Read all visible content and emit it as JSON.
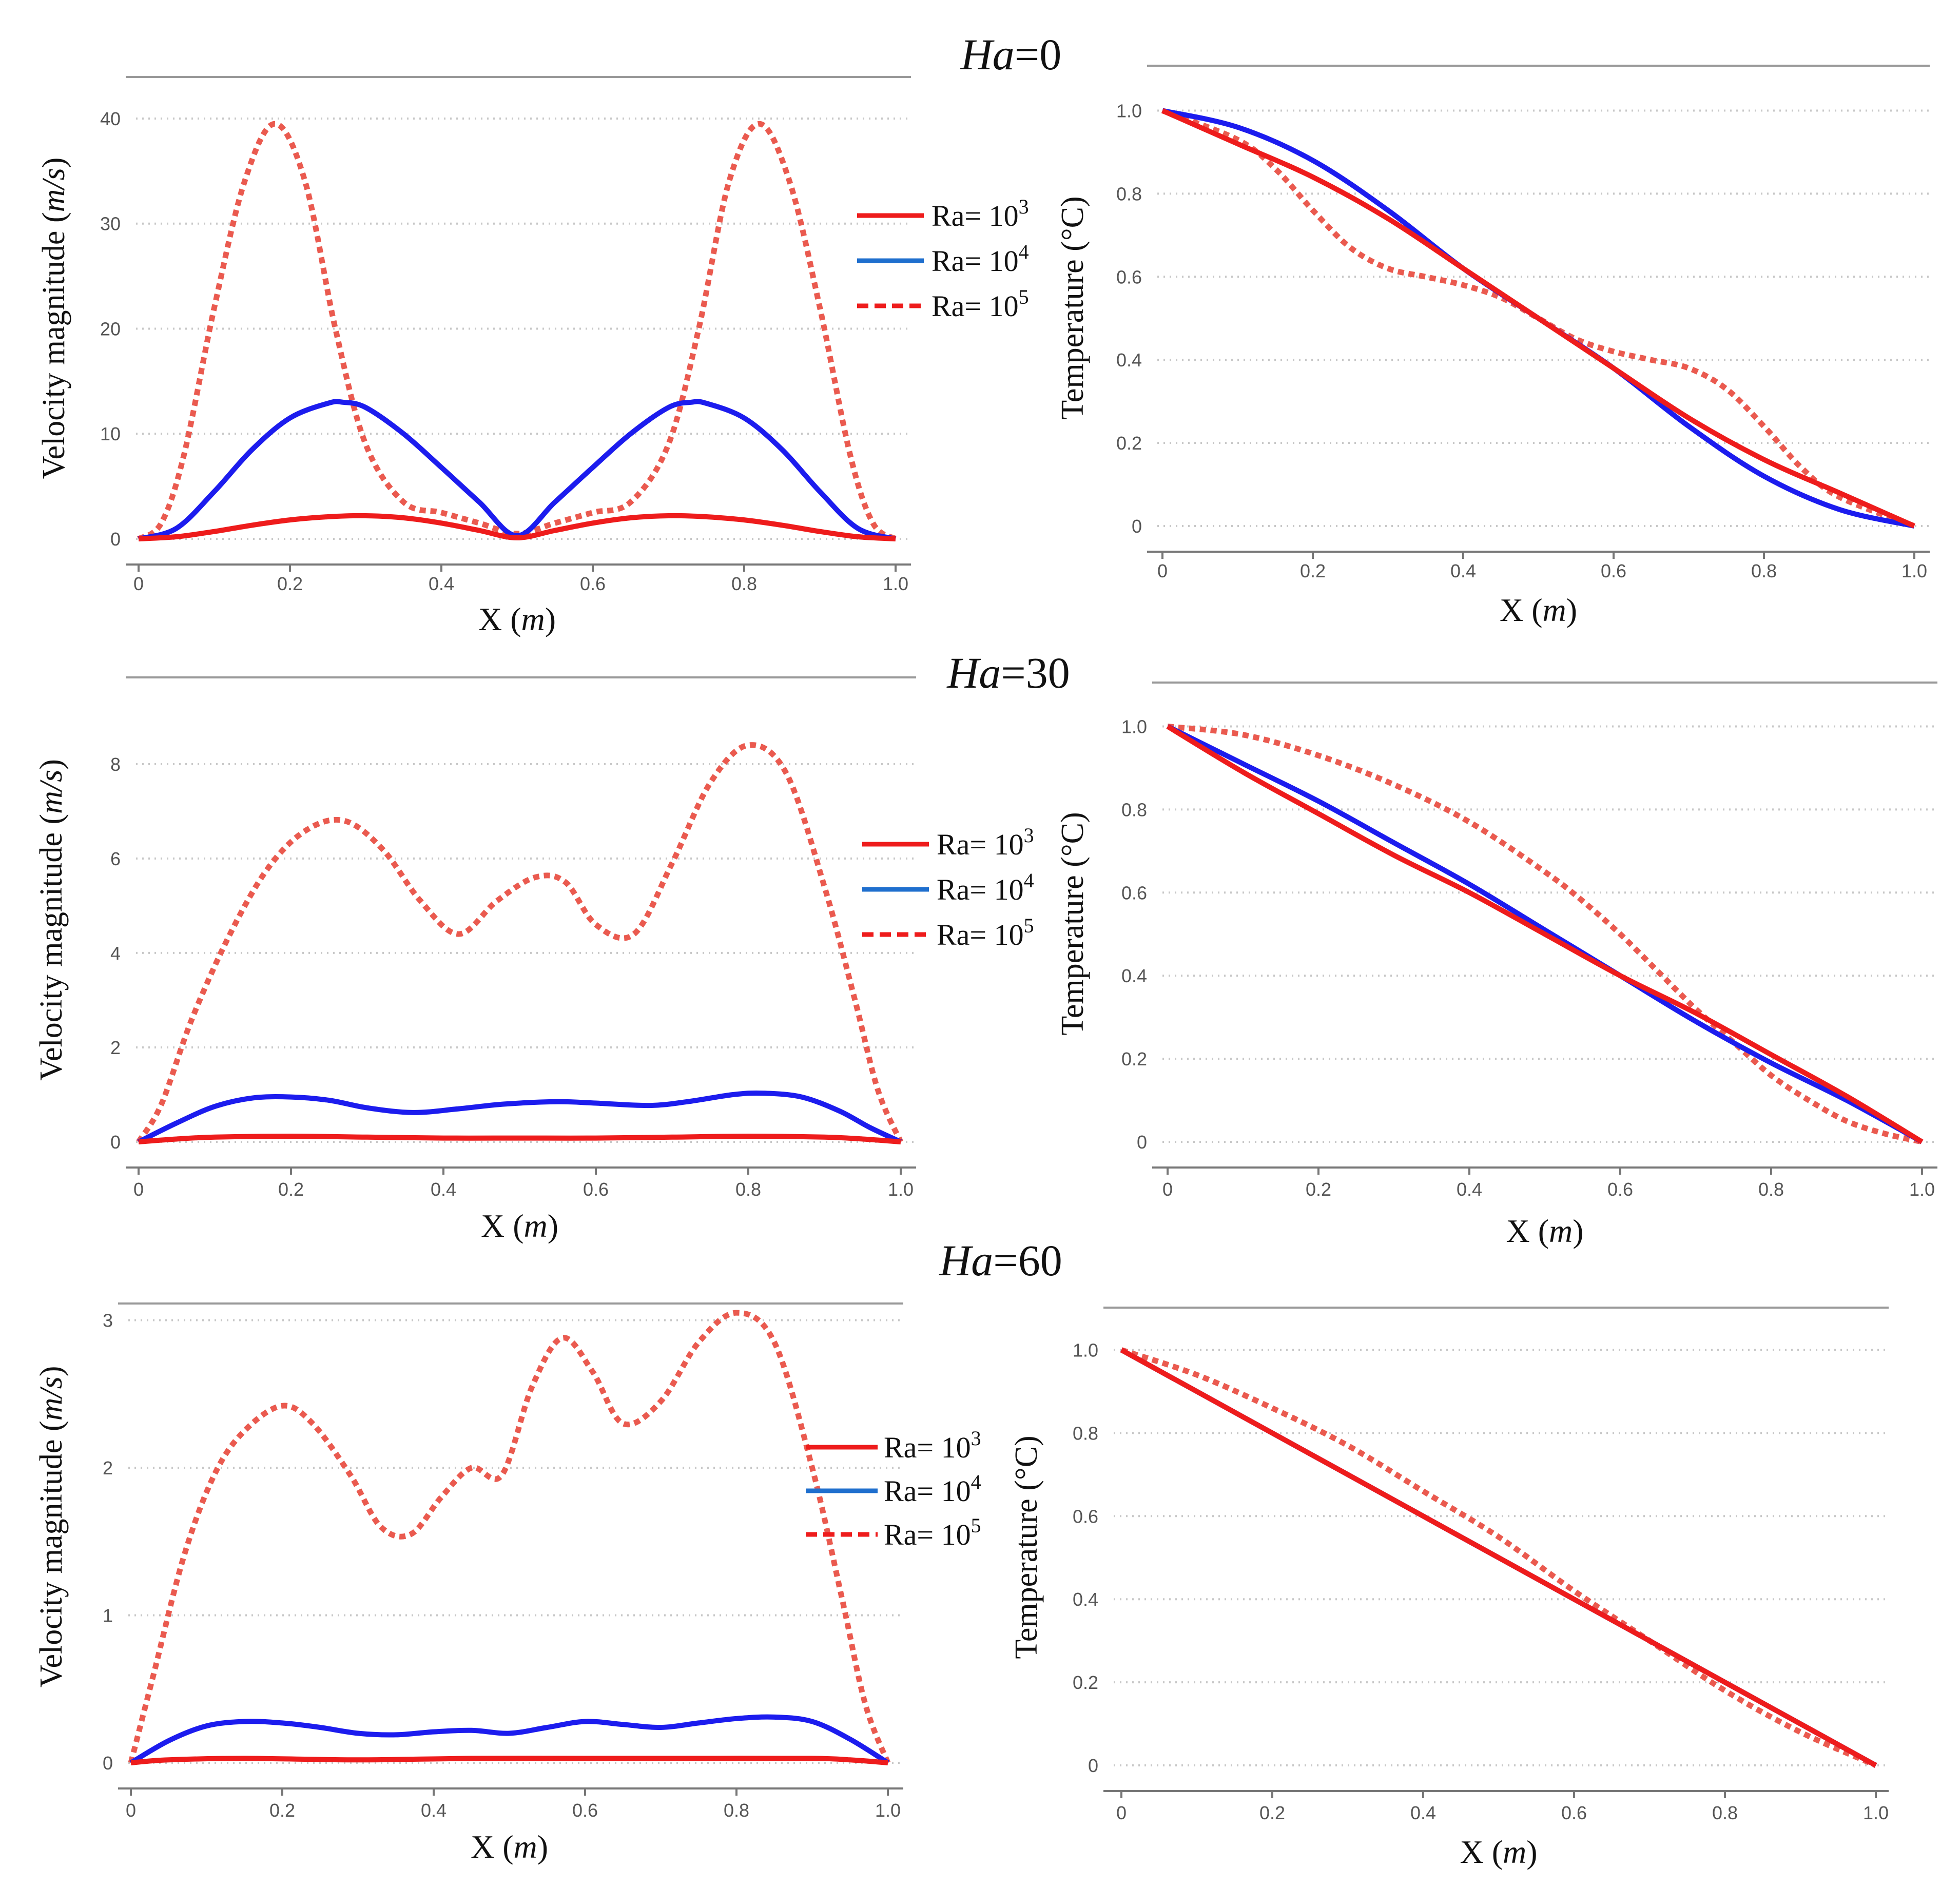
{
  "figure_labels": [
    {
      "id": "ha0",
      "prefix": "Ha",
      "suffix": "=0"
    },
    {
      "id": "ha30",
      "prefix": "Ha",
      "suffix": "=30"
    },
    {
      "id": "ha60",
      "prefix": "Ha",
      "suffix": "=60"
    }
  ],
  "legend": {
    "entries": [
      {
        "label": "Ra= 10",
        "exp": "3",
        "color": "#ee1c1c",
        "style": "solid"
      },
      {
        "label": "Ra= 10",
        "exp": "4",
        "color": "#1f6fce",
        "style": "solid"
      },
      {
        "label": "Ra= 10",
        "exp": "5",
        "color": "#ee1c1c",
        "style": "dashed"
      }
    ]
  },
  "series_colors": {
    "ra3": "#ee1c1c",
    "ra4": "#1c1cee",
    "ra5": "#ea5a4f"
  },
  "chart_data": [
    {
      "id": "vel-ha0",
      "type": "line",
      "title": "",
      "xlabel_main": "X",
      "xlabel_unit": "m",
      "ylabel_main": "Velocity magnitude",
      "ylabel_unit": "m/s",
      "xlim": [
        0,
        1
      ],
      "ylim": [
        0,
        42
      ],
      "xticks": [
        0,
        0.2,
        0.4,
        0.6,
        0.8,
        1.0
      ],
      "xtick_labels": [
        "0",
        "0.2",
        "0.4",
        "0.6",
        "0.8",
        "1.0"
      ],
      "yticks": [
        0,
        10,
        20,
        30,
        40
      ],
      "ytick_labels": [
        "0",
        "10",
        "20",
        "30",
        "40"
      ],
      "grid": true,
      "series": [
        {
          "name": "Ra= 10^3",
          "key": "ra3",
          "style": "solid",
          "x": [
            0,
            0.05,
            0.1,
            0.15,
            0.2,
            0.25,
            0.3,
            0.35,
            0.4,
            0.45,
            0.5,
            0.55,
            0.6,
            0.65,
            0.7,
            0.75,
            0.8,
            0.85,
            0.9,
            0.95,
            1.0
          ],
          "y": [
            0,
            0.2,
            0.7,
            1.3,
            1.8,
            2.1,
            2.2,
            2.0,
            1.5,
            0.8,
            0.1,
            0.8,
            1.5,
            2.0,
            2.2,
            2.1,
            1.8,
            1.3,
            0.7,
            0.2,
            0
          ]
        },
        {
          "name": "Ra= 10^4",
          "key": "ra4",
          "style": "solid",
          "x": [
            0,
            0.05,
            0.1,
            0.15,
            0.2,
            0.25,
            0.27,
            0.3,
            0.35,
            0.4,
            0.45,
            0.5,
            0.55,
            0.6,
            0.65,
            0.7,
            0.73,
            0.75,
            0.8,
            0.85,
            0.9,
            0.95,
            1.0
          ],
          "y": [
            0,
            1.0,
            4.5,
            8.5,
            11.5,
            12.9,
            13.0,
            12.5,
            10.0,
            6.8,
            3.5,
            0.3,
            3.5,
            6.8,
            10.0,
            12.5,
            13.0,
            12.9,
            11.5,
            8.5,
            4.5,
            1.0,
            0
          ]
        },
        {
          "name": "Ra= 10^5",
          "key": "ra5",
          "style": "dashed",
          "x": [
            0,
            0.03,
            0.06,
            0.1,
            0.14,
            0.18,
            0.22,
            0.26,
            0.3,
            0.35,
            0.4,
            0.45,
            0.5,
            0.55,
            0.6,
            0.65,
            0.7,
            0.74,
            0.78,
            0.82,
            0.86,
            0.9,
            0.94,
            0.97,
            1.0
          ],
          "y": [
            0,
            1.5,
            8.0,
            22.0,
            34.0,
            39.5,
            34.0,
            20.0,
            9.0,
            3.5,
            2.5,
            1.5,
            0.5,
            1.5,
            2.5,
            3.5,
            9.0,
            20.0,
            34.0,
            39.5,
            34.0,
            22.0,
            8.0,
            1.5,
            0
          ]
        }
      ]
    },
    {
      "id": "temp-ha0",
      "type": "line",
      "title": "",
      "xlabel_main": "X",
      "xlabel_unit": "m",
      "ylabel_main": "Temperature",
      "ylabel_unit": "°C",
      "xlim": [
        0,
        1
      ],
      "ylim": [
        0,
        1.05
      ],
      "xticks": [
        0,
        0.2,
        0.4,
        0.6,
        0.8,
        1.0
      ],
      "xtick_labels": [
        "0",
        "0.2",
        "0.4",
        "0.6",
        "0.8",
        "1.0"
      ],
      "yticks": [
        0,
        0.2,
        0.4,
        0.6,
        0.8,
        1.0
      ],
      "ytick_labels": [
        "0",
        "0.2",
        "0.4",
        "0.6",
        "0.8",
        "1.0"
      ],
      "grid": true,
      "series": [
        {
          "name": "Ra= 10^3",
          "key": "ra3",
          "style": "solid",
          "x": [
            0,
            0.1,
            0.2,
            0.3,
            0.4,
            0.5,
            0.6,
            0.7,
            0.8,
            0.9,
            1.0
          ],
          "y": [
            1.0,
            0.92,
            0.84,
            0.74,
            0.62,
            0.5,
            0.38,
            0.26,
            0.16,
            0.08,
            0
          ]
        },
        {
          "name": "Ra= 10^4",
          "key": "ra4",
          "style": "solid",
          "x": [
            0,
            0.1,
            0.2,
            0.3,
            0.4,
            0.5,
            0.6,
            0.7,
            0.8,
            0.9,
            1.0
          ],
          "y": [
            1.0,
            0.96,
            0.88,
            0.76,
            0.62,
            0.5,
            0.38,
            0.24,
            0.12,
            0.04,
            0
          ]
        },
        {
          "name": "Ra= 10^5",
          "key": "ra5",
          "style": "dashed",
          "x": [
            0,
            0.1,
            0.15,
            0.2,
            0.25,
            0.3,
            0.35,
            0.4,
            0.45,
            0.5,
            0.55,
            0.6,
            0.65,
            0.7,
            0.75,
            0.8,
            0.85,
            0.9,
            1.0
          ],
          "y": [
            1.0,
            0.93,
            0.86,
            0.76,
            0.67,
            0.62,
            0.6,
            0.58,
            0.55,
            0.5,
            0.45,
            0.42,
            0.4,
            0.38,
            0.33,
            0.24,
            0.14,
            0.07,
            0
          ]
        }
      ]
    },
    {
      "id": "vel-ha30",
      "type": "line",
      "title": "",
      "xlabel_main": "X",
      "xlabel_unit": "m",
      "ylabel_main": "Velocity magnitude",
      "ylabel_unit": "m/s",
      "xlim": [
        0,
        1
      ],
      "ylim": [
        0,
        9.4
      ],
      "xticks": [
        0,
        0.2,
        0.4,
        0.6,
        0.8,
        1.0
      ],
      "xtick_labels": [
        "0",
        "0.2",
        "0.4",
        "0.6",
        "0.8",
        "1.0"
      ],
      "yticks": [
        0,
        2,
        4,
        6,
        8
      ],
      "ytick_labels": [
        "0",
        "2",
        "4",
        "6",
        "8"
      ],
      "grid": true,
      "series": [
        {
          "name": "Ra= 10^3",
          "key": "ra3",
          "style": "solid",
          "x": [
            0,
            0.05,
            0.1,
            0.2,
            0.3,
            0.4,
            0.5,
            0.6,
            0.7,
            0.8,
            0.9,
            0.95,
            1.0
          ],
          "y": [
            0,
            0.06,
            0.1,
            0.12,
            0.1,
            0.08,
            0.08,
            0.08,
            0.1,
            0.12,
            0.1,
            0.06,
            0
          ]
        },
        {
          "name": "Ra= 10^4",
          "key": "ra4",
          "style": "solid",
          "x": [
            0,
            0.05,
            0.1,
            0.15,
            0.2,
            0.25,
            0.3,
            0.36,
            0.42,
            0.48,
            0.55,
            0.6,
            0.67,
            0.72,
            0.78,
            0.82,
            0.87,
            0.92,
            0.96,
            1.0
          ],
          "y": [
            0,
            0.4,
            0.75,
            0.93,
            0.95,
            0.88,
            0.72,
            0.62,
            0.7,
            0.8,
            0.85,
            0.82,
            0.77,
            0.85,
            1.0,
            1.03,
            0.95,
            0.65,
            0.3,
            0
          ]
        },
        {
          "name": "Ra= 10^5",
          "key": "ra5",
          "style": "dashed",
          "x": [
            0,
            0.03,
            0.07,
            0.12,
            0.17,
            0.22,
            0.27,
            0.32,
            0.37,
            0.42,
            0.47,
            0.52,
            0.56,
            0.6,
            0.65,
            0.7,
            0.75,
            0.8,
            0.85,
            0.9,
            0.94,
            0.97,
            1.0
          ],
          "y": [
            0,
            0.8,
            2.6,
            4.4,
            5.8,
            6.6,
            6.8,
            6.2,
            5.1,
            4.4,
            5.1,
            5.6,
            5.5,
            4.6,
            4.4,
            5.9,
            7.6,
            8.4,
            7.8,
            5.4,
            3.0,
            1.1,
            0
          ]
        }
      ]
    },
    {
      "id": "temp-ha30",
      "type": "line",
      "title": "",
      "xlabel_main": "X",
      "xlabel_unit": "m",
      "ylabel_main": "Temperature",
      "ylabel_unit": "°C",
      "xlim": [
        0,
        1
      ],
      "ylim": [
        0,
        1.05
      ],
      "xticks": [
        0,
        0.2,
        0.4,
        0.6,
        0.8,
        1.0
      ],
      "xtick_labels": [
        "0",
        "0.2",
        "0.4",
        "0.6",
        "0.8",
        "1.0"
      ],
      "yticks": [
        0,
        0.2,
        0.4,
        0.6,
        0.8,
        1.0
      ],
      "ytick_labels": [
        "0",
        "0.2",
        "0.4",
        "0.6",
        "0.8",
        "1.0"
      ],
      "grid": true,
      "series": [
        {
          "name": "Ra= 10^3",
          "key": "ra3",
          "style": "solid",
          "x": [
            0,
            0.1,
            0.2,
            0.3,
            0.4,
            0.5,
            0.6,
            0.7,
            0.8,
            0.9,
            1.0
          ],
          "y": [
            1.0,
            0.89,
            0.79,
            0.69,
            0.6,
            0.5,
            0.4,
            0.31,
            0.21,
            0.11,
            0
          ]
        },
        {
          "name": "Ra= 10^4",
          "key": "ra4",
          "style": "solid",
          "x": [
            0,
            0.1,
            0.2,
            0.3,
            0.4,
            0.5,
            0.6,
            0.7,
            0.8,
            0.9,
            1.0
          ],
          "y": [
            1.0,
            0.91,
            0.82,
            0.72,
            0.62,
            0.51,
            0.4,
            0.29,
            0.19,
            0.1,
            0
          ]
        },
        {
          "name": "Ra= 10^5",
          "key": "ra5",
          "style": "dashed",
          "x": [
            0,
            0.1,
            0.2,
            0.3,
            0.4,
            0.5,
            0.55,
            0.6,
            0.65,
            0.7,
            0.75,
            0.8,
            0.85,
            0.9,
            0.95,
            1.0
          ],
          "y": [
            1.0,
            0.98,
            0.93,
            0.86,
            0.77,
            0.65,
            0.58,
            0.5,
            0.41,
            0.32,
            0.24,
            0.16,
            0.1,
            0.05,
            0.02,
            0
          ]
        }
      ]
    },
    {
      "id": "vel-ha60",
      "type": "line",
      "title": "",
      "xlabel_main": "X",
      "xlabel_unit": "m",
      "ylabel_main": "Velocity magnitude",
      "ylabel_unit": "m/s",
      "xlim": [
        0,
        1
      ],
      "ylim": [
        0,
        3.2
      ],
      "xticks": [
        0,
        0.2,
        0.4,
        0.6,
        0.8,
        1.0
      ],
      "xtick_labels": [
        "0",
        "0.2",
        "0.4",
        "0.6",
        "0.8",
        "1.0"
      ],
      "yticks": [
        0,
        1,
        2,
        3
      ],
      "ytick_labels": [
        "0",
        "1",
        "2",
        "3"
      ],
      "grid": true,
      "series": [
        {
          "name": "Ra= 10^3",
          "key": "ra3",
          "style": "solid",
          "x": [
            0,
            0.05,
            0.15,
            0.3,
            0.45,
            0.6,
            0.75,
            0.9,
            0.95,
            1.0
          ],
          "y": [
            0,
            0.02,
            0.03,
            0.02,
            0.03,
            0.03,
            0.03,
            0.03,
            0.02,
            0
          ]
        },
        {
          "name": "Ra= 10^4",
          "key": "ra4",
          "style": "solid",
          "x": [
            0,
            0.05,
            0.1,
            0.15,
            0.2,
            0.25,
            0.3,
            0.35,
            0.4,
            0.45,
            0.5,
            0.55,
            0.6,
            0.65,
            0.7,
            0.75,
            0.8,
            0.85,
            0.9,
            0.95,
            1.0
          ],
          "y": [
            0,
            0.15,
            0.25,
            0.28,
            0.27,
            0.24,
            0.2,
            0.19,
            0.21,
            0.22,
            0.2,
            0.24,
            0.28,
            0.26,
            0.24,
            0.27,
            0.3,
            0.31,
            0.28,
            0.16,
            0
          ]
        },
        {
          "name": "Ra= 10^5",
          "key": "ra5",
          "style": "dashed",
          "x": [
            0,
            0.03,
            0.07,
            0.11,
            0.15,
            0.2,
            0.24,
            0.29,
            0.33,
            0.37,
            0.41,
            0.45,
            0.49,
            0.53,
            0.57,
            0.61,
            0.65,
            0.7,
            0.75,
            0.8,
            0.85,
            0.9,
            0.94,
            0.97,
            1.0
          ],
          "y": [
            0,
            0.6,
            1.4,
            1.95,
            2.25,
            2.42,
            2.3,
            1.95,
            1.6,
            1.55,
            1.8,
            2.0,
            1.95,
            2.55,
            2.88,
            2.65,
            2.3,
            2.45,
            2.85,
            3.05,
            2.85,
            2.0,
            1.1,
            0.4,
            0
          ]
        }
      ]
    },
    {
      "id": "temp-ha60",
      "type": "line",
      "title": "",
      "xlabel_main": "X",
      "xlabel_unit": "m",
      "ylabel_main": "Temperature",
      "ylabel_unit": "°C",
      "xlim": [
        0,
        1
      ],
      "ylim": [
        0,
        1.05
      ],
      "xticks": [
        0,
        0.2,
        0.4,
        0.6,
        0.8,
        1.0
      ],
      "xtick_labels": [
        "0",
        "0.2",
        "0.4",
        "0.6",
        "0.8",
        "1.0"
      ],
      "yticks": [
        0,
        0.2,
        0.4,
        0.6,
        0.8,
        1.0
      ],
      "ytick_labels": [
        "0",
        "0.2",
        "0.4",
        "0.6",
        "0.8",
        "1.0"
      ],
      "grid": true,
      "series": [
        {
          "name": "Ra= 10^3",
          "key": "ra3",
          "style": "solid",
          "x": [
            0,
            0.1,
            0.2,
            0.3,
            0.4,
            0.5,
            0.6,
            0.7,
            0.8,
            0.9,
            1.0
          ],
          "y": [
            1.0,
            0.9,
            0.8,
            0.7,
            0.6,
            0.5,
            0.4,
            0.3,
            0.2,
            0.1,
            0
          ]
        },
        {
          "name": "Ra= 10^4",
          "key": "ra4",
          "style": "solid",
          "x": [
            0,
            0.1,
            0.2,
            0.3,
            0.4,
            0.5,
            0.6,
            0.7,
            0.8,
            0.9,
            1.0
          ],
          "y": [
            1.0,
            0.9,
            0.8,
            0.7,
            0.6,
            0.5,
            0.4,
            0.3,
            0.2,
            0.1,
            0
          ]
        },
        {
          "name": "Ra= 10^5",
          "key": "ra5",
          "style": "dashed",
          "x": [
            0,
            0.1,
            0.2,
            0.3,
            0.4,
            0.5,
            0.6,
            0.7,
            0.8,
            0.9,
            1.0
          ],
          "y": [
            1.0,
            0.94,
            0.86,
            0.77,
            0.66,
            0.55,
            0.42,
            0.3,
            0.18,
            0.08,
            0
          ]
        }
      ]
    }
  ]
}
